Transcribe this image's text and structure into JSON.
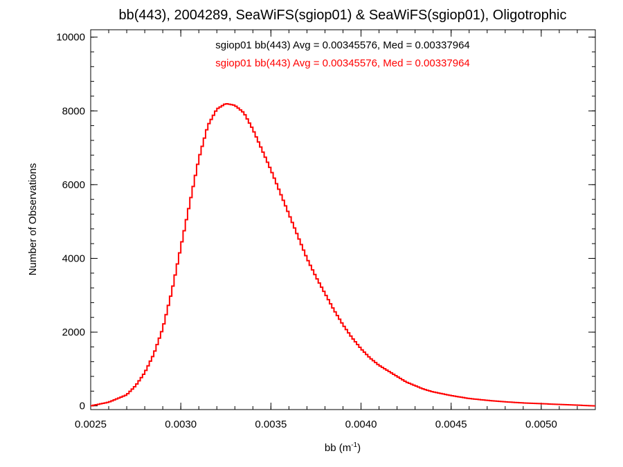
{
  "chart_data": {
    "type": "line",
    "step": true,
    "title": "bb(443), 2004289, SeaWiFS(sgiop01) & SeaWiFS(sgiop01), Oligotrophic",
    "xlabel": "bb (m",
    "xlabel_sup": "-1",
    "xlabel_close": ")",
    "ylabel": "Number of Observations",
    "xlim": [
      0.0025,
      0.0053
    ],
    "ylim": [
      -100,
      10200
    ],
    "x_ticks": [
      0.0025,
      0.003,
      0.0035,
      0.004,
      0.0045,
      0.005
    ],
    "x_tick_labels": [
      "0.0025",
      "0.0030",
      "0.0035",
      "0.0040",
      "0.0045",
      "0.0050"
    ],
    "y_ticks": [
      0,
      2000,
      4000,
      6000,
      8000,
      10000
    ],
    "y_tick_labels": [
      "0",
      "2000",
      "4000",
      "6000",
      "8000",
      "10000"
    ],
    "grid": false,
    "annotations": [
      {
        "text": "sgiop01 bb(443) Avg = 0.00345576, Med = 0.00337964",
        "color": "#000000"
      },
      {
        "text": "sgiop01 bb(443) Avg = 0.00345576, Med = 0.00337964",
        "color": "#ff0000"
      }
    ],
    "series": [
      {
        "color": "#ff0000",
        "x": [
          0.0025,
          0.0026,
          0.0027,
          0.00275,
          0.0028,
          0.00285,
          0.0029,
          0.00295,
          0.003,
          0.00305,
          0.0031,
          0.00315,
          0.0032,
          0.00325,
          0.0033,
          0.00335,
          0.0034,
          0.00345,
          0.0035,
          0.00355,
          0.0036,
          0.00365,
          0.0037,
          0.00375,
          0.0038,
          0.00385,
          0.0039,
          0.00395,
          0.004,
          0.00405,
          0.0041,
          0.00415,
          0.0042,
          0.00425,
          0.0043,
          0.00435,
          0.0044,
          0.0045,
          0.0046,
          0.0047,
          0.0048,
          0.0049,
          0.005,
          0.0051,
          0.0052,
          0.0053
        ],
        "y": [
          0,
          100,
          300,
          550,
          900,
          1400,
          2100,
          3100,
          4300,
          5500,
          6700,
          7600,
          8050,
          8200,
          8150,
          7950,
          7500,
          6950,
          6400,
          5800,
          5200,
          4600,
          4000,
          3500,
          3050,
          2600,
          2200,
          1850,
          1550,
          1300,
          1100,
          950,
          800,
          650,
          550,
          450,
          380,
          280,
          200,
          150,
          110,
          80,
          60,
          40,
          20,
          0
        ]
      }
    ]
  }
}
